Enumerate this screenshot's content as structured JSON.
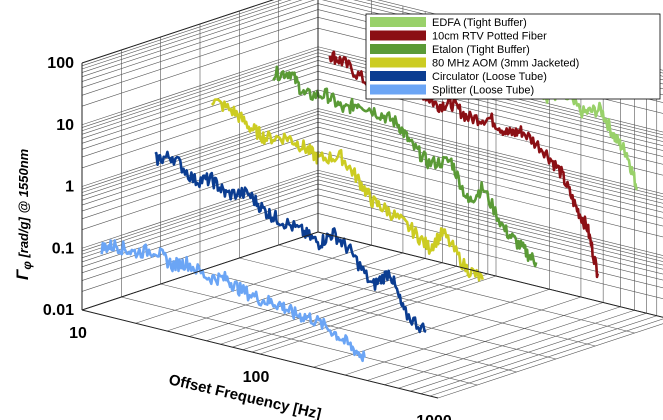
{
  "chart_data": {
    "type": "line",
    "projection": "3d-waterfall",
    "xlabel": "Offset Frequency [Hz]",
    "ylabel": "Γφ [rad/g] @ 1550nm",
    "ylabel_symbol": "Γ",
    "ylabel_sub": "φ",
    "ylabel_rest": " [rad/g] @ 1550nm",
    "x_scale": "log",
    "y_scale": "log",
    "xlim": [
      10,
      1000
    ],
    "ylim": [
      0.01,
      100
    ],
    "x_ticks": [
      "10",
      "100",
      "1000"
    ],
    "y_ticks": [
      "100",
      "10",
      "1",
      "0.1",
      "0.01"
    ],
    "grid": true,
    "legend_position": "top-right",
    "series": [
      {
        "name": "EDFA (Tight Buffer)",
        "color": "#99d16a",
        "x": [
          30,
          35,
          40,
          50,
          60,
          70,
          80,
          100,
          120,
          150,
          200,
          250,
          300,
          400,
          500,
          600,
          700,
          800
        ],
        "y": [
          70,
          40,
          55,
          45,
          30,
          50,
          35,
          30,
          40,
          25,
          30,
          20,
          25,
          15,
          20,
          8,
          5,
          1.5
        ]
      },
      {
        "name": "10cm RTV Potted Fiber",
        "color": "#8b0f14",
        "x": [
          25,
          30,
          40,
          50,
          60,
          80,
          100,
          120,
          150,
          200,
          250,
          300,
          400,
          500,
          600,
          700,
          800
        ],
        "y": [
          30,
          25,
          15,
          20,
          15,
          18,
          12,
          15,
          10,
          12,
          8,
          10,
          6,
          3,
          1,
          0.5,
          0.1
        ]
      },
      {
        "name": "Etalon (Tight Buffer)",
        "color": "#5a9a36",
        "x": [
          20,
          25,
          30,
          40,
          50,
          60,
          80,
          100,
          120,
          150,
          200,
          250,
          300,
          400,
          500,
          600
        ],
        "y": [
          20,
          25,
          12,
          15,
          10,
          15,
          12,
          10,
          5,
          3,
          4,
          1,
          2,
          0.5,
          0.3,
          0.2
        ]
      },
      {
        "name": "80 MHz AOM (3mm Jacketed)",
        "color": "#cccc22",
        "x": [
          15,
          20,
          25,
          30,
          40,
          50,
          60,
          80,
          100,
          120,
          150,
          200,
          250,
          300,
          400,
          500
        ],
        "y": [
          10,
          8,
          5,
          4,
          5,
          4,
          3,
          4,
          2,
          1,
          0.8,
          0.5,
          0.3,
          0.6,
          0.2,
          0.15
        ]
      },
      {
        "name": "Circulator (Loose Tube)",
        "color": "#0b3d91",
        "x": [
          12,
          15,
          20,
          25,
          30,
          40,
          50,
          60,
          80,
          100,
          120,
          150,
          200,
          250,
          300,
          400
        ],
        "y": [
          1.5,
          2,
          1,
          1.2,
          0.8,
          1,
          0.6,
          0.5,
          0.4,
          0.3,
          0.5,
          0.3,
          0.1,
          0.2,
          0.05,
          0.03
        ]
      },
      {
        "name": "Splitter (Loose Tube)",
        "color": "#6ba5f5",
        "x": [
          10,
          12,
          15,
          20,
          25,
          30,
          40,
          50,
          60,
          80,
          100,
          120,
          150,
          200,
          250,
          300
        ],
        "y": [
          0.08,
          0.1,
          0.09,
          0.12,
          0.08,
          0.1,
          0.07,
          0.08,
          0.06,
          0.05,
          0.05,
          0.04,
          0.04,
          0.03,
          0.02,
          0.015
        ]
      }
    ]
  }
}
